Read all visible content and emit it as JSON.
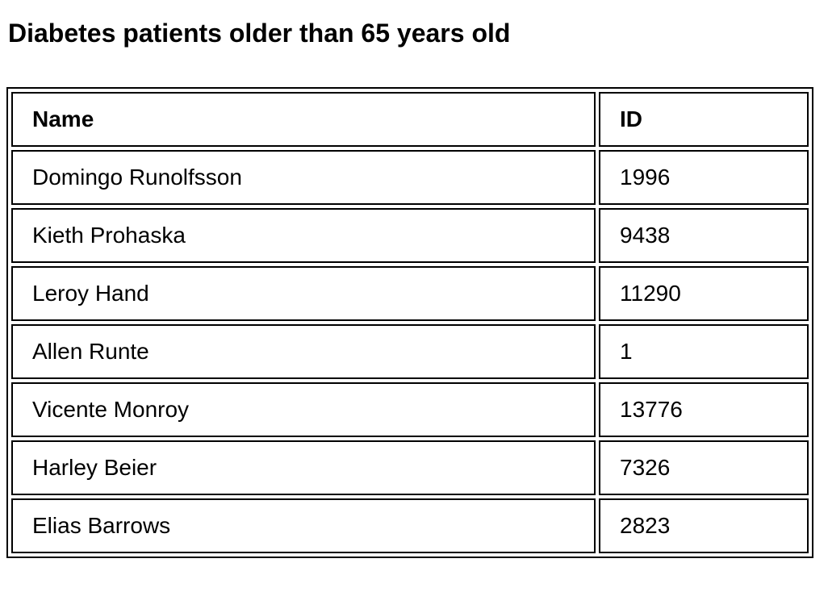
{
  "page_title": "Diabetes patients older than 65 years old",
  "table": {
    "headers": [
      "Name",
      "ID"
    ],
    "rows": [
      {
        "name": "Domingo Runolfsson",
        "id": "1996"
      },
      {
        "name": "Kieth Prohaska",
        "id": "9438"
      },
      {
        "name": "Leroy Hand",
        "id": "11290"
      },
      {
        "name": "Allen Runte",
        "id": "1"
      },
      {
        "name": "Vicente Monroy",
        "id": "13776"
      },
      {
        "name": "Harley Beier",
        "id": "7326"
      },
      {
        "name": "Elias Barrows",
        "id": "2823"
      }
    ]
  }
}
